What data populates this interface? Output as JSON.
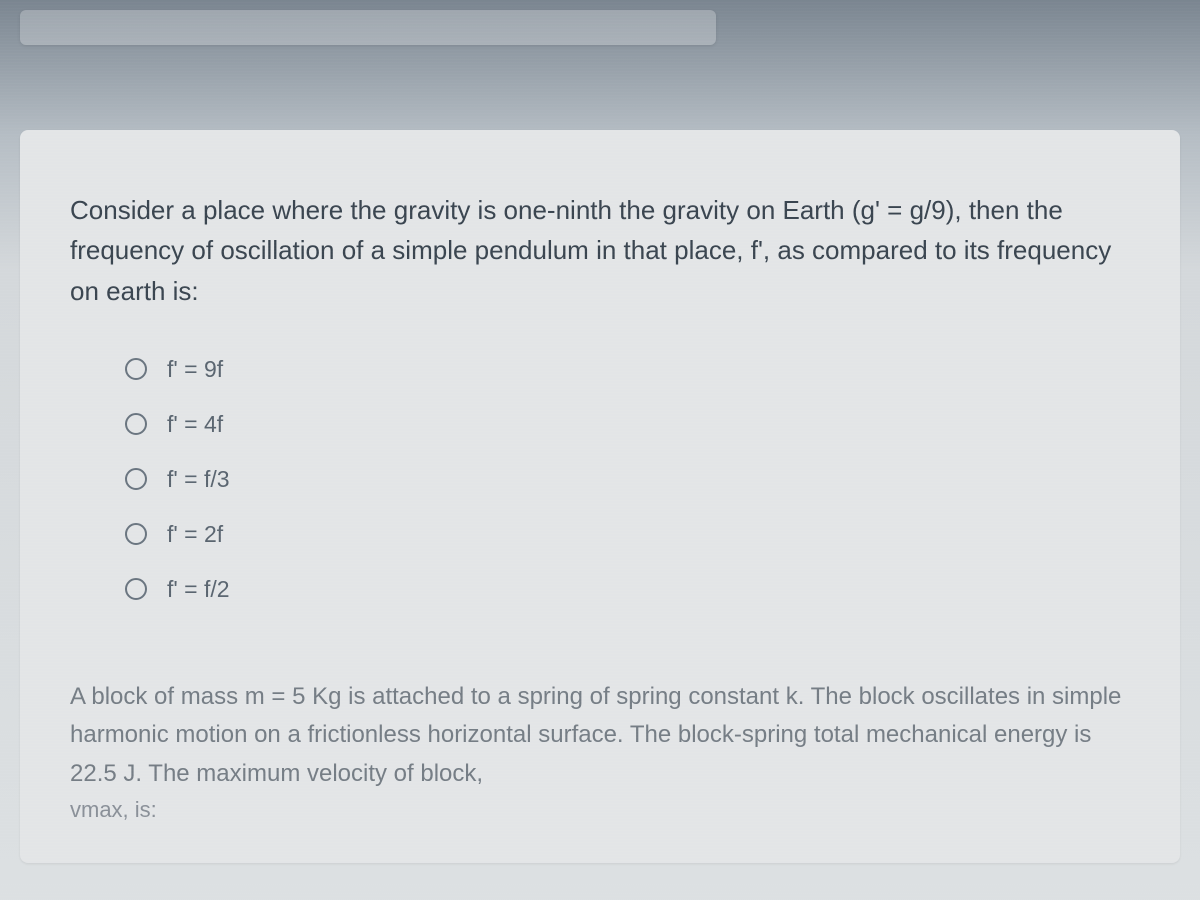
{
  "question1": {
    "text": "Consider a place where the gravity is one-ninth the gravity on Earth (g' = g/9), then the frequency of oscillation of a simple pendulum in that place, f', as compared to its frequency on earth is:",
    "options": [
      {
        "label": "f' = 9f"
      },
      {
        "label": "f' = 4f"
      },
      {
        "label": "f' = f/3"
      },
      {
        "label": "f' = 2f"
      },
      {
        "label": "f' = f/2"
      }
    ]
  },
  "question2": {
    "text": "A block of mass m = 5 Kg is attached to a spring of spring constant k. The block oscillates in simple harmonic motion on a frictionless horizontal surface. The block-spring total mechanical energy is 22.5 J. The maximum velocity of block,",
    "vmax": "vmax, is:"
  },
  "styles": {
    "background_gradient_top": "#7a8590",
    "background_gradient_bottom": "#dce0e2",
    "card_background": "#e3e5e7",
    "question_text_color": "#3a4550",
    "option_text_color": "#5a6570",
    "second_question_color": "#757d85",
    "radio_border_color": "#6a7580",
    "question_fontsize": 26,
    "option_fontsize": 23
  }
}
